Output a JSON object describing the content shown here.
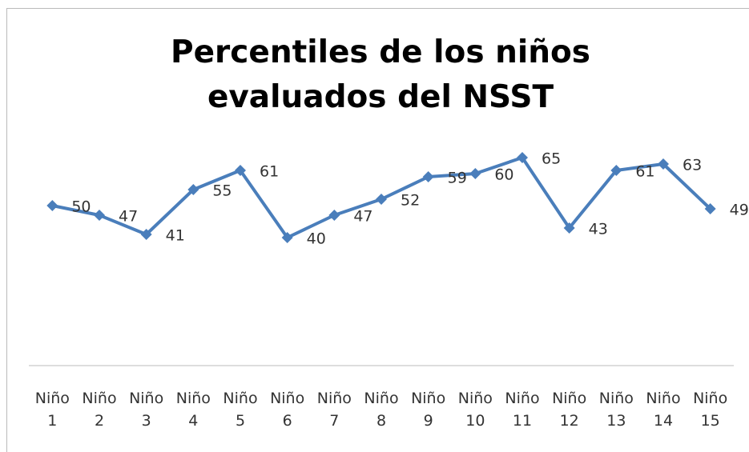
{
  "chart_data": {
    "type": "line",
    "title": "Percentiles de los niños evaluados del NSST",
    "categories": [
      "Niño 1",
      "Niño 2",
      "Niño 3",
      "Niño 4",
      "Niño 5",
      "Niño 6",
      "Niño 7",
      "Niño 8",
      "Niño 9",
      "Niño 10",
      "Niño 11",
      "Niño 12",
      "Niño 13",
      "Niño 14",
      "Niño 15"
    ],
    "values": [
      50,
      47,
      41,
      55,
      61,
      40,
      47,
      52,
      59,
      60,
      65,
      43,
      61,
      63,
      49
    ],
    "color": "#4a7ebb",
    "ylim": [
      0,
      70
    ]
  }
}
